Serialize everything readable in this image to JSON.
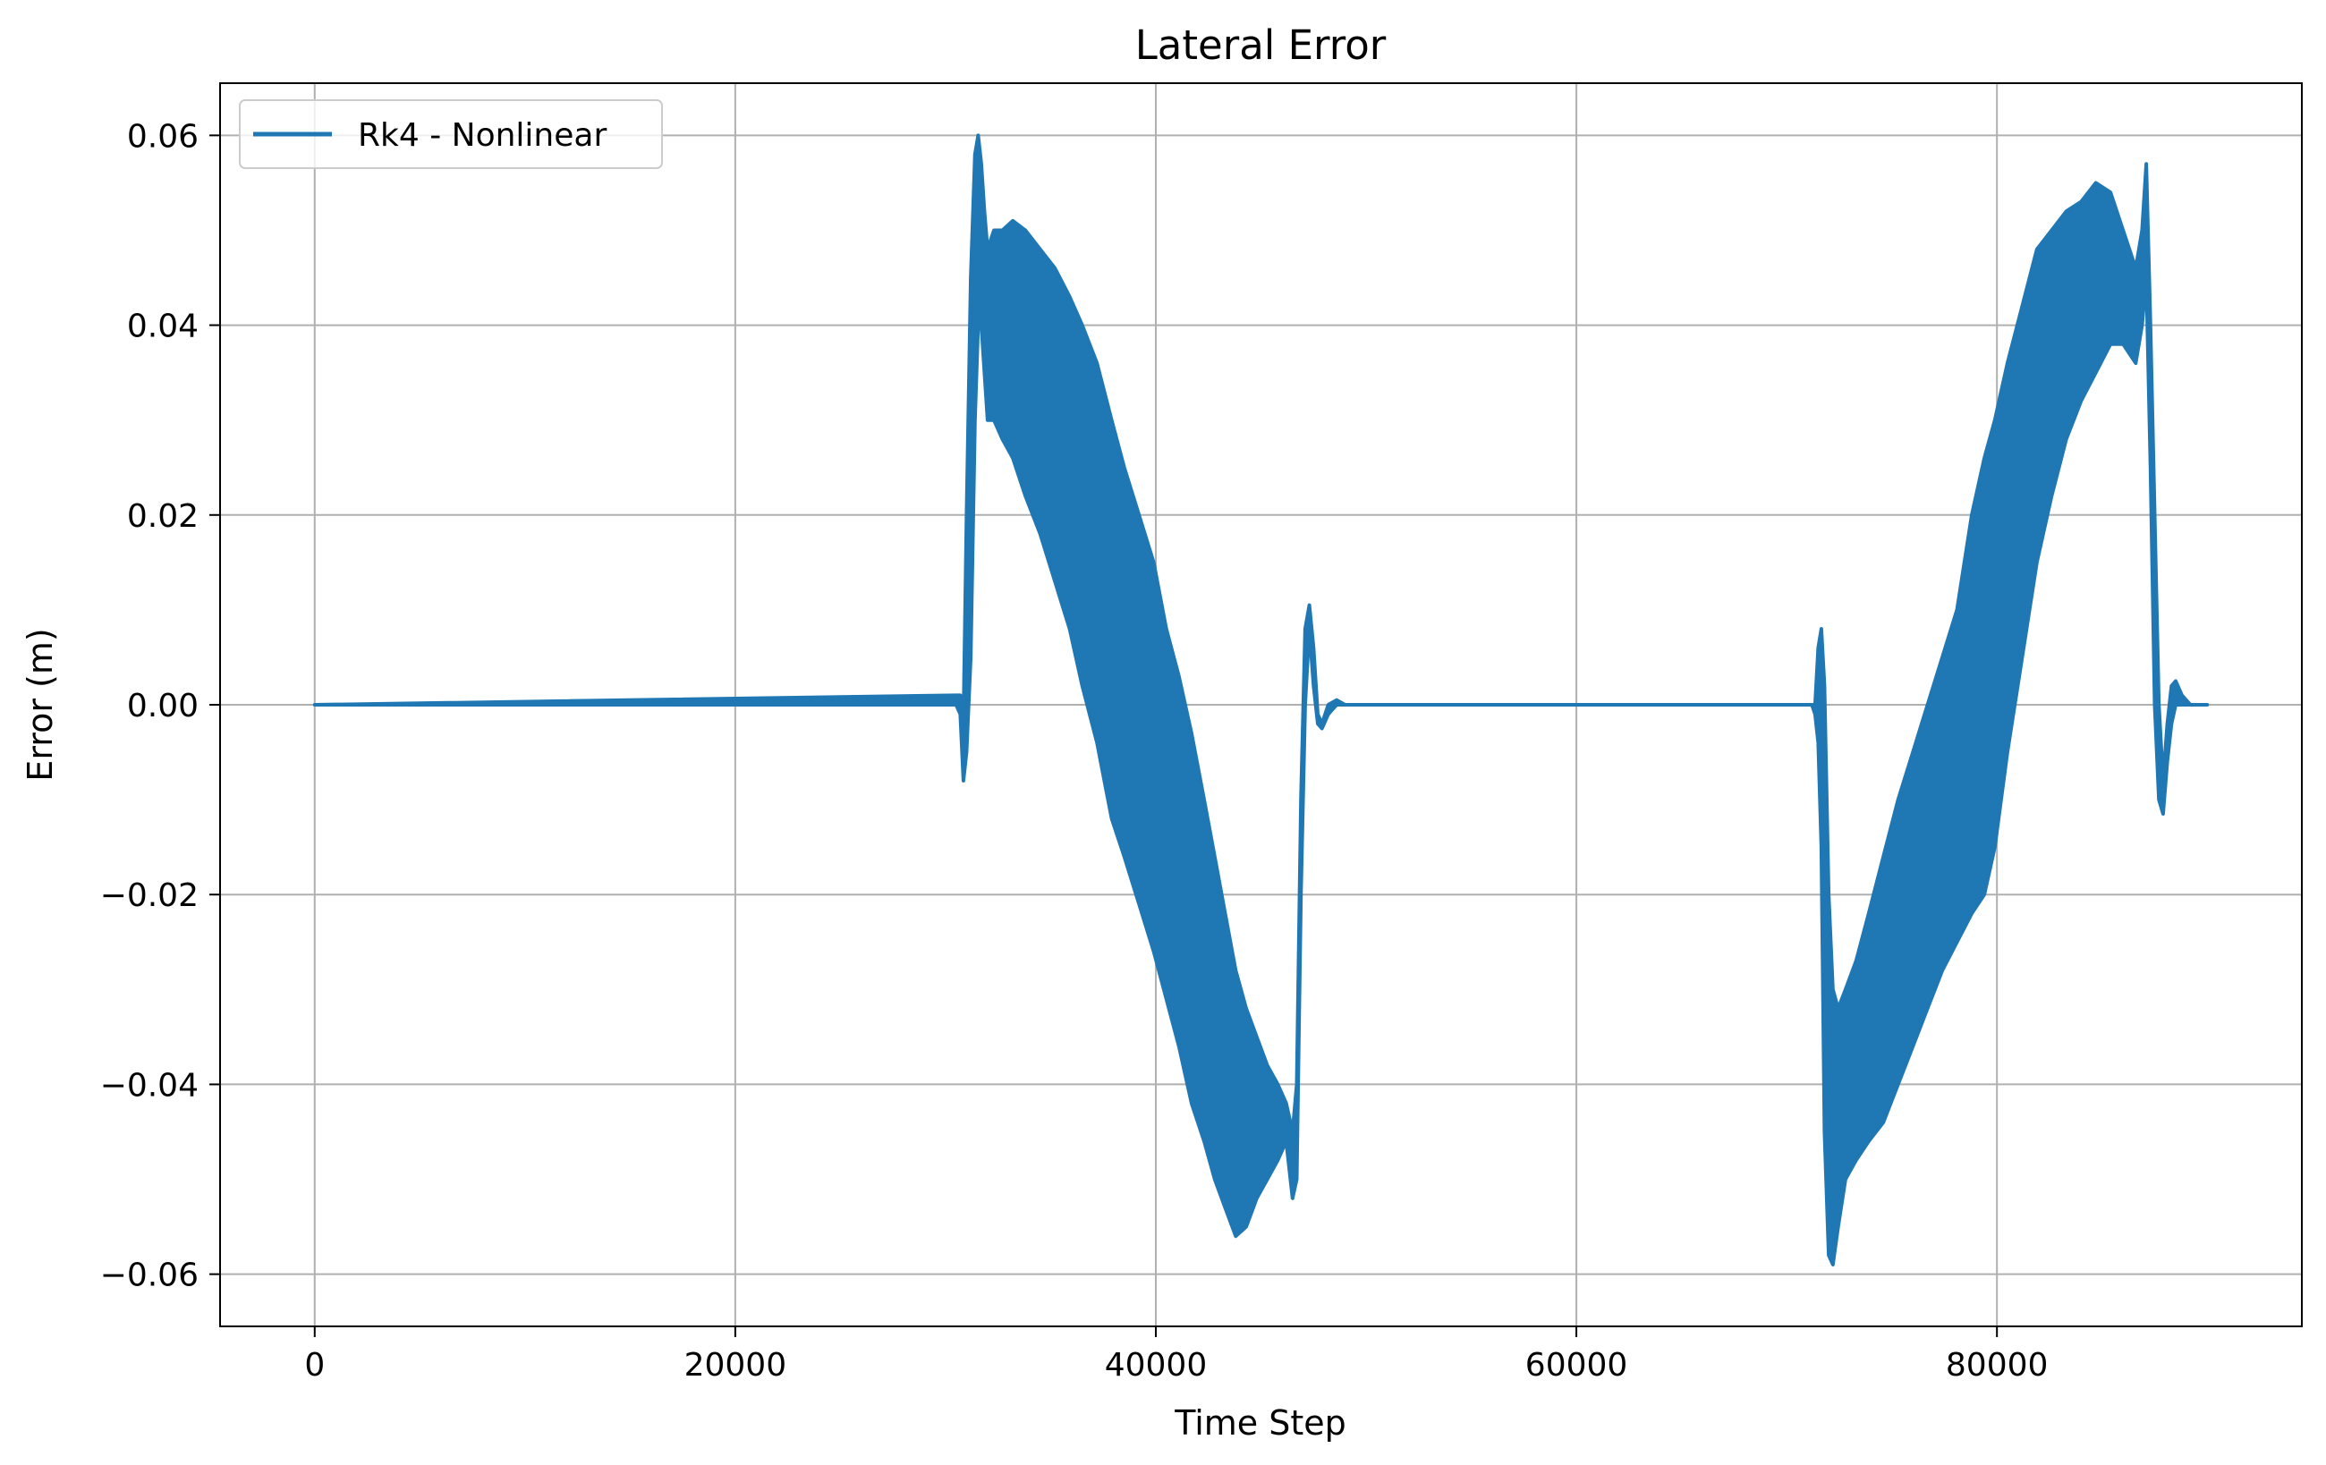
{
  "chart_data": {
    "type": "line",
    "title": "Lateral Error",
    "xlabel": "Time Step",
    "ylabel": "Error (m)",
    "xlim": [
      -4500,
      94500
    ],
    "ylim": [
      -0.0655,
      0.0655
    ],
    "xticks": [
      0,
      20000,
      40000,
      60000,
      80000
    ],
    "xtick_labels": [
      "0",
      "20000",
      "40000",
      "60000",
      "80000"
    ],
    "yticks": [
      0.06,
      0.04,
      0.02,
      0.0,
      -0.02,
      -0.04,
      -0.06
    ],
    "ytick_labels": [
      "0.06",
      "0.04",
      "0.02",
      "0.00",
      "−0.02",
      "−0.04",
      "−0.06"
    ],
    "grid": true,
    "legend": {
      "position": "top-left",
      "entries": [
        "Rk4 - Nonlinear"
      ]
    },
    "colors": {
      "series": "#1f77b4",
      "grid": "#b0b0b0",
      "axes": "#000000"
    },
    "series": [
      {
        "name": "Rk4 - Nonlinear",
        "x": [
          0,
          30500,
          30700,
          30850,
          31000,
          31200,
          31400,
          31550,
          31700,
          31850,
          32000,
          32300,
          32700,
          33200,
          33800,
          34500,
          35200,
          35900,
          36500,
          37200,
          37900,
          38500,
          39200,
          39900,
          40500,
          41100,
          41700,
          42300,
          42800,
          43300,
          43800,
          44300,
          44800,
          45300,
          45800,
          46200,
          46500,
          46700,
          46900,
          47100,
          47300,
          47500,
          47700,
          47900,
          48200,
          48600,
          49000,
          50000,
          71200,
          71350,
          71500,
          71650,
          71800,
          72000,
          72200,
          72450,
          72800,
          73300,
          73900,
          74600,
          75300,
          76000,
          76700,
          77400,
          78100,
          78800,
          79400,
          79900,
          80500,
          81200,
          81900,
          82600,
          83300,
          84000,
          84700,
          85400,
          86000,
          86600,
          86900,
          87100,
          87300,
          87500,
          87700,
          87900,
          88100,
          88300,
          88500,
          88800,
          89200,
          89600,
          90000
        ],
        "upper": [
          0,
          0.001,
          0.001,
          -0.002,
          0.02,
          0.045,
          0.058,
          0.06,
          0.057,
          0.052,
          0.048,
          0.05,
          0.05,
          0.051,
          0.05,
          0.048,
          0.046,
          0.043,
          0.04,
          0.036,
          0.03,
          0.025,
          0.02,
          0.015,
          0.008,
          0.003,
          -0.003,
          -0.01,
          -0.016,
          -0.022,
          -0.028,
          -0.032,
          -0.035,
          -0.038,
          -0.04,
          -0.042,
          -0.045,
          -0.04,
          -0.01,
          0.008,
          0.0105,
          0.006,
          -0.001,
          -0.002,
          0.0,
          0.0005,
          0.0,
          0.0,
          0.0,
          0.0,
          0.006,
          0.008,
          0.002,
          -0.02,
          -0.03,
          -0.032,
          -0.03,
          -0.027,
          -0.022,
          -0.016,
          -0.01,
          -0.005,
          0.0,
          0.005,
          0.01,
          0.02,
          0.026,
          0.03,
          0.036,
          0.042,
          0.048,
          0.05,
          0.052,
          0.053,
          0.055,
          0.054,
          0.05,
          0.046,
          0.05,
          0.057,
          0.04,
          0.02,
          0.0,
          -0.008,
          -0.002,
          0.002,
          0.0025,
          0.001,
          0.0,
          0.0,
          0.0
        ],
        "lower": [
          0,
          0.0,
          -0.001,
          -0.008,
          -0.005,
          0.005,
          0.03,
          0.04,
          0.04,
          0.035,
          0.03,
          0.03,
          0.028,
          0.026,
          0.022,
          0.018,
          0.013,
          0.008,
          0.002,
          -0.004,
          -0.012,
          -0.016,
          -0.021,
          -0.026,
          -0.031,
          -0.036,
          -0.042,
          -0.046,
          -0.05,
          -0.053,
          -0.056,
          -0.055,
          -0.052,
          -0.05,
          -0.048,
          -0.046,
          -0.052,
          -0.05,
          -0.02,
          0.0,
          0.008,
          0.002,
          -0.002,
          -0.0025,
          -0.001,
          0.0,
          0.0,
          0.0,
          0.0,
          -0.001,
          -0.004,
          -0.015,
          -0.045,
          -0.058,
          -0.059,
          -0.055,
          -0.05,
          -0.048,
          -0.046,
          -0.044,
          -0.04,
          -0.036,
          -0.032,
          -0.028,
          -0.025,
          -0.022,
          -0.02,
          -0.015,
          -0.005,
          0.005,
          0.015,
          0.022,
          0.028,
          0.032,
          0.035,
          0.038,
          0.038,
          0.036,
          0.04,
          0.045,
          0.025,
          0.0,
          -0.01,
          -0.0115,
          -0.006,
          -0.002,
          0.0,
          0.0,
          0.0,
          0.0,
          0.0
        ]
      }
    ]
  }
}
